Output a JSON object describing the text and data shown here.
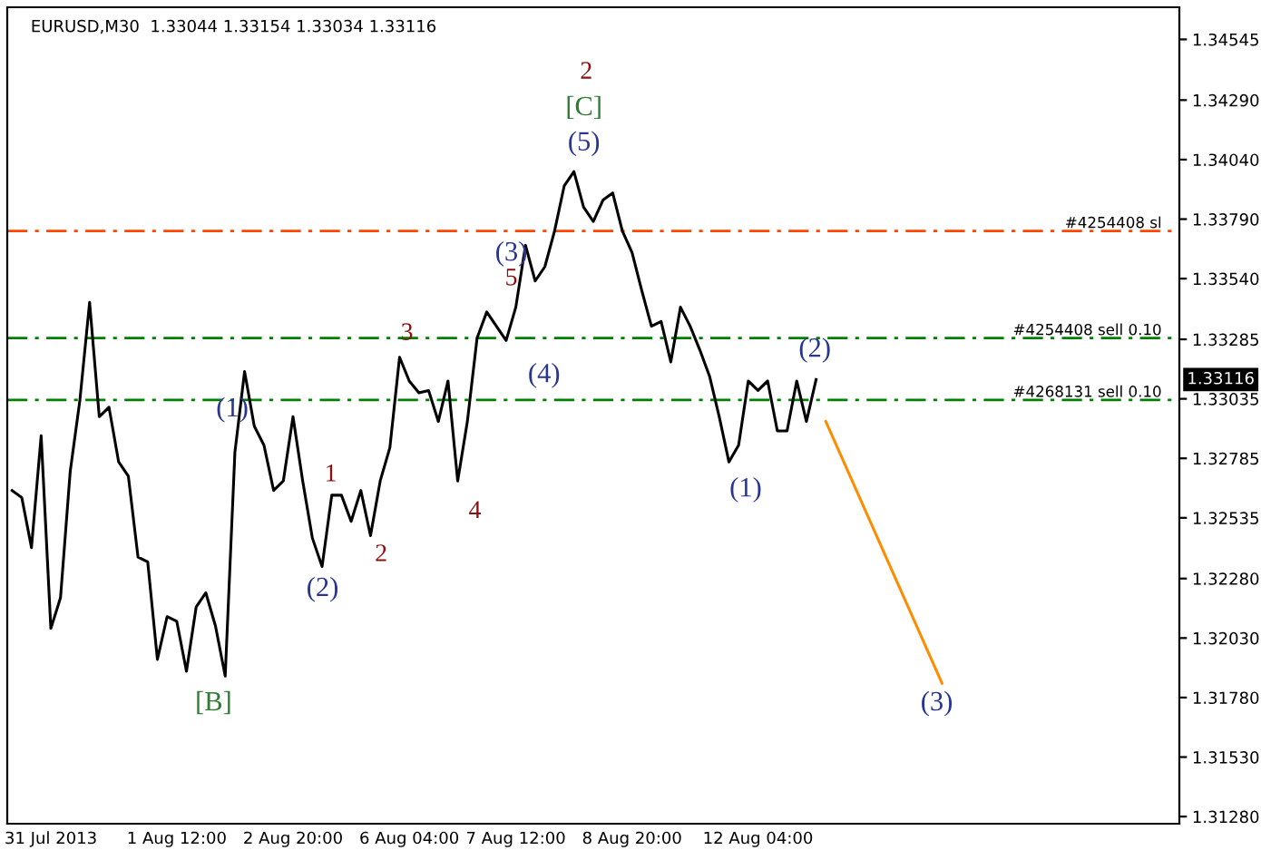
{
  "chart_data": {
    "type": "line",
    "title": "EURUSD,M30  1.33044 1.33154 1.33034 1.33116",
    "categories": [
      null,
      null,
      null,
      null,
      "31 Jul 2013",
      null,
      null,
      null,
      null,
      null,
      null,
      null,
      null,
      null,
      null,
      null,
      null,
      "1 Aug 12:00",
      null,
      null,
      null,
      null,
      null,
      null,
      null,
      null,
      null,
      null,
      null,
      "2 Aug 20:00",
      null,
      null,
      null,
      null,
      null,
      null,
      null,
      null,
      null,
      null,
      null,
      "6 Aug 04:00",
      null,
      null,
      null,
      null,
      null,
      null,
      null,
      null,
      null,
      null,
      "7 Aug 12:00",
      null,
      null,
      null,
      null,
      null,
      null,
      null,
      null,
      null,
      null,
      null,
      "8 Aug 20:00",
      null,
      null,
      null,
      null,
      null,
      null,
      null,
      null,
      null,
      null,
      null,
      null,
      "12 Aug 04:00",
      null,
      null,
      null,
      null,
      null,
      null,
      null,
      null,
      null,
      null,
      null,
      null,
      null,
      null,
      null,
      null,
      null,
      null,
      null,
      null,
      null,
      null,
      null,
      null,
      null,
      null,
      null,
      null,
      null,
      null,
      null,
      null,
      null,
      null,
      null,
      null,
      null,
      null,
      null,
      null,
      null,
      null,
      null
    ],
    "ylim": [
      1.3125,
      1.3468
    ],
    "yticks": [
      {
        "value": 1.3128,
        "label": "1.31280"
      },
      {
        "value": 1.3153,
        "label": "1.31530"
      },
      {
        "value": 1.3178,
        "label": "1.31780"
      },
      {
        "value": 1.3203,
        "label": "1.32030"
      },
      {
        "value": 1.3228,
        "label": "1.32280"
      },
      {
        "value": 1.32535,
        "label": "1.32535"
      },
      {
        "value": 1.32785,
        "label": "1.32785"
      },
      {
        "value": 1.33035,
        "label": "1.33035"
      },
      {
        "value": 1.33285,
        "label": "1.33285"
      },
      {
        "value": 1.3354,
        "label": "1.33540"
      },
      {
        "value": 1.3379,
        "label": "1.33790"
      },
      {
        "value": 1.3404,
        "label": "1.34040"
      },
      {
        "value": 1.3429,
        "label": "1.34290"
      },
      {
        "value": 1.34545,
        "label": "1.34545"
      }
    ],
    "series": [
      {
        "color": "#000000",
        "values": [
          1.3265,
          1.3262,
          1.3241,
          1.3288,
          1.3207,
          1.322,
          1.3273,
          1.3303,
          1.3344,
          1.3296,
          1.33,
          1.3277,
          1.3271,
          1.3237,
          1.3235,
          1.3194,
          1.3212,
          1.321,
          1.3189,
          1.3216,
          1.3222,
          1.3208,
          1.3187,
          1.3281,
          1.3315,
          1.3292,
          1.3284,
          1.3265,
          1.3269,
          1.3296,
          1.3269,
          1.3245,
          1.3233,
          1.3263,
          1.3263,
          1.3252,
          1.3265,
          1.3246,
          1.3269,
          1.3283,
          1.3321,
          1.3311,
          1.3306,
          1.3307,
          1.3294,
          1.3311,
          1.3269,
          1.3294,
          1.3329,
          1.334,
          1.3334,
          1.3328,
          1.3342,
          1.3368,
          1.3353,
          1.3359,
          1.3374,
          1.3393,
          1.3399,
          1.3384,
          1.3378,
          1.3387,
          1.339,
          1.3374,
          1.3365,
          1.3349,
          1.3334,
          1.3336,
          1.3319,
          1.3342,
          1.3334,
          1.3324,
          1.3313,
          1.3296,
          1.3277,
          1.3284,
          1.3311,
          1.3307,
          1.3311,
          1.329,
          1.329,
          1.3311,
          1.3294,
          1.33116,
          null,
          null,
          null,
          null,
          null,
          null,
          null,
          null,
          null,
          null,
          null,
          null,
          null,
          null,
          null,
          null,
          null,
          null,
          null,
          null,
          null,
          null,
          null,
          null,
          null,
          null,
          null,
          null,
          null,
          null,
          null,
          null,
          null,
          null,
          null,
          null,
          null
        ]
      },
      {
        "color": "#ff8c00",
        "values": [
          null,
          null,
          null,
          null,
          null,
          null,
          null,
          null,
          null,
          null,
          null,
          null,
          null,
          null,
          null,
          null,
          null,
          null,
          null,
          null,
          null,
          null,
          null,
          null,
          null,
          null,
          null,
          null,
          null,
          null,
          null,
          null,
          null,
          null,
          null,
          null,
          null,
          null,
          null,
          null,
          null,
          null,
          null,
          null,
          null,
          null,
          null,
          null,
          null,
          null,
          null,
          null,
          null,
          null,
          null,
          null,
          null,
          null,
          null,
          null,
          null,
          null,
          null,
          null,
          null,
          null,
          null,
          null,
          null,
          null,
          null,
          null,
          null,
          null,
          null,
          null,
          null,
          null,
          null,
          null,
          null,
          null,
          null,
          null,
          1.3294,
          null,
          null,
          null,
          null,
          null,
          null,
          null,
          null,
          null,
          null,
          null,
          1.3184,
          null,
          null,
          null,
          null,
          null,
          null,
          null,
          null,
          null,
          null,
          null,
          null,
          null,
          null,
          null,
          null,
          null,
          null,
          null,
          null,
          null,
          null,
          null,
          null
        ]
      }
    ],
    "ref_lines": [
      {
        "axis": "y",
        "value": 1.3374,
        "label": "#4254408 sl",
        "color": "#ff4500",
        "line_style": "dashdot"
      },
      {
        "axis": "y",
        "value": 1.3329,
        "label": "#4254408 sell 0.10",
        "color": "#008000",
        "line_style": "dashdot"
      },
      {
        "axis": "y",
        "value": 1.3303,
        "label": "#4268131 sell 0.10",
        "color": "#008000",
        "line_style": "dashdot"
      }
    ],
    "annotations": [
      "2",
      "[C]",
      "(5)",
      "(3)",
      "5",
      "3",
      "(4)",
      "(1)",
      "1",
      "(2)",
      "2",
      "4",
      "[B]",
      "(1)",
      "(2)",
      "(3)",
      "1.33116"
    ]
  }
}
